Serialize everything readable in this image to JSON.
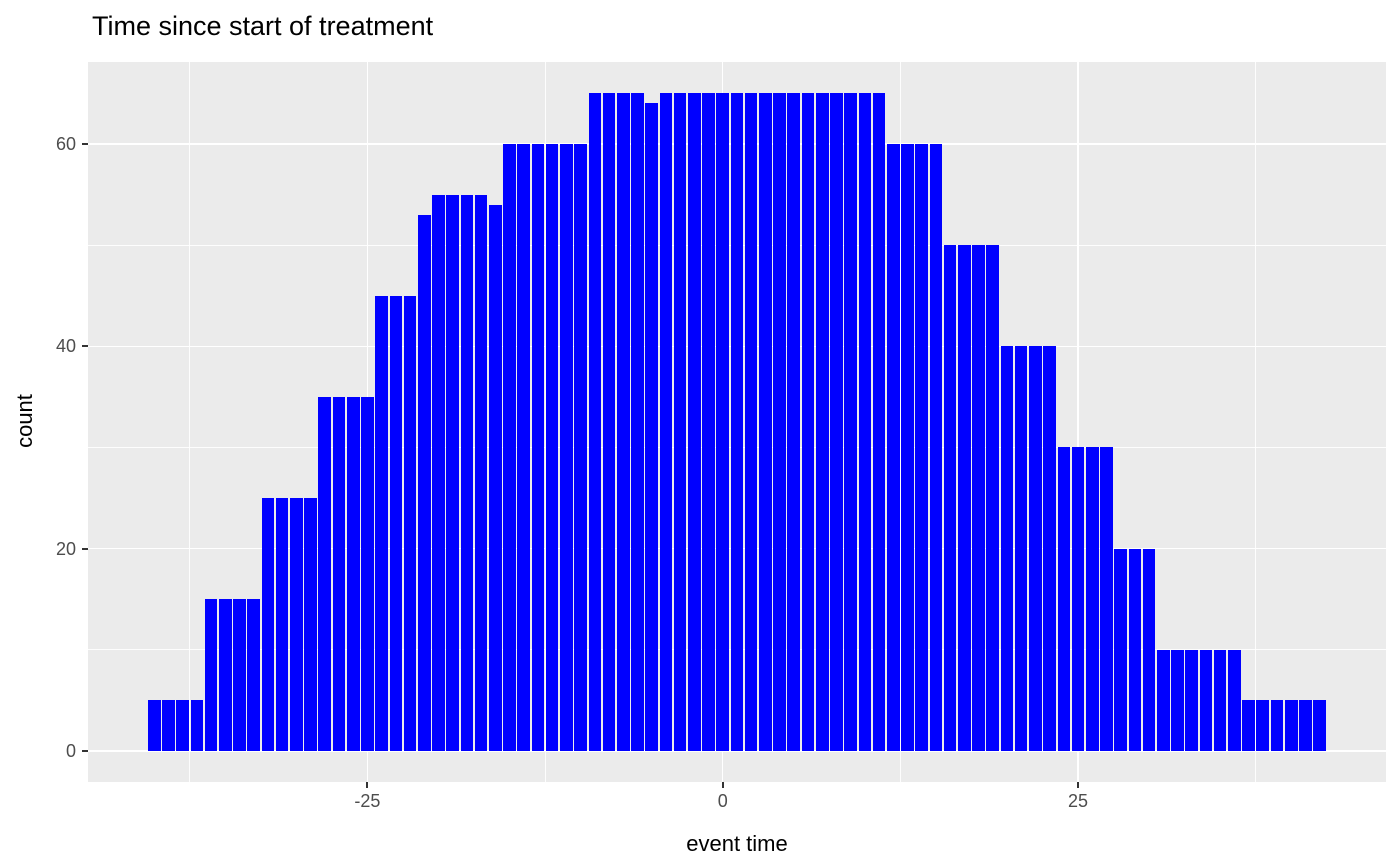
{
  "title": "Time since start of treatment",
  "chart_data": {
    "type": "bar",
    "subtype": "histogram",
    "title": "Time since start of treatment",
    "xlabel": "event time",
    "ylabel": "count",
    "legend": "none",
    "grid": true,
    "bin_width": 1,
    "x": [
      -40,
      -39,
      -38,
      -37,
      -36,
      -35,
      -34,
      -33,
      -32,
      -31,
      -30,
      -29,
      -28,
      -27,
      -26,
      -25,
      -24,
      -23,
      -22,
      -21,
      -20,
      -19,
      -18,
      -17,
      -16,
      -15,
      -14,
      -13,
      -12,
      -11,
      -10,
      -9,
      -8,
      -7,
      -6,
      -5,
      -4,
      -3,
      -2,
      -1,
      0,
      1,
      2,
      3,
      4,
      5,
      6,
      7,
      8,
      9,
      10,
      11,
      12,
      13,
      14,
      15,
      16,
      17,
      18,
      19,
      20,
      21,
      22,
      23,
      24,
      25,
      26,
      27,
      28,
      29,
      30,
      31,
      32,
      33,
      34,
      35,
      36,
      37,
      38,
      39,
      40,
      41,
      42
    ],
    "values": [
      5,
      5,
      5,
      5,
      15,
      15,
      15,
      15,
      25,
      25,
      25,
      25,
      35,
      35,
      35,
      35,
      45,
      45,
      45,
      53,
      55,
      55,
      55,
      55,
      54,
      60,
      60,
      60,
      60,
      60,
      60,
      65,
      65,
      65,
      65,
      64,
      65,
      65,
      65,
      65,
      65,
      65,
      65,
      65,
      65,
      65,
      65,
      65,
      65,
      65,
      65,
      65,
      60,
      60,
      60,
      60,
      50,
      50,
      50,
      50,
      40,
      40,
      40,
      40,
      30,
      30,
      30,
      30,
      20,
      20,
      20,
      10,
      10,
      10,
      10,
      10,
      10,
      5,
      5,
      5,
      5,
      5,
      5
    ],
    "x_ticks": [
      -25,
      0,
      25
    ],
    "x_tick_labels": [
      "-25",
      "0",
      "25"
    ],
    "x_minor_ticks": [
      -37.5,
      -12.5,
      12.5,
      37.5
    ],
    "y_ticks": [
      0,
      20,
      40,
      60
    ],
    "y_tick_labels": [
      "0",
      "20",
      "40",
      "60"
    ],
    "y_minor_ticks": [
      10,
      30,
      50
    ],
    "xlim": [
      -44.66,
      46.67
    ],
    "ylim": [
      -3.06,
      68.1
    ],
    "colors": {
      "bar_fill": "#0000FF",
      "panel_background": "#EBEBEB",
      "gridline": "#FFFFFF",
      "tick_label": "#4D4D4D",
      "tick_mark": "#333333",
      "axis_title": "#000000",
      "title": "#000000",
      "page_background": "#FFFFFF"
    }
  }
}
